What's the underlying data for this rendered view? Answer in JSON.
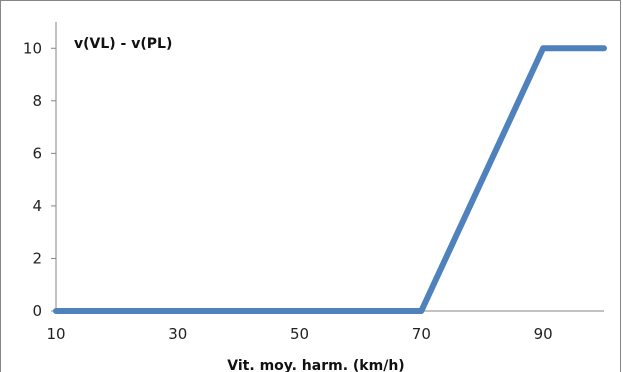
{
  "chart_data": {
    "type": "line",
    "title": "v(VL) - v(PL)",
    "xlabel": "Vit. moy. harm. (km/h)",
    "ylabel": "",
    "xlim": [
      10,
      100
    ],
    "ylim": [
      0,
      11
    ],
    "x_ticks": [
      "10",
      "30",
      "50",
      "70",
      "90"
    ],
    "y_ticks": [
      "0",
      "2",
      "4",
      "6",
      "8",
      "10"
    ],
    "grid": false,
    "legend": "none",
    "series": [
      {
        "color": "#4f81bd",
        "points": [
          [
            10,
            0
          ],
          [
            70,
            0
          ],
          [
            90,
            10
          ],
          [
            100,
            10
          ]
        ]
      }
    ]
  }
}
